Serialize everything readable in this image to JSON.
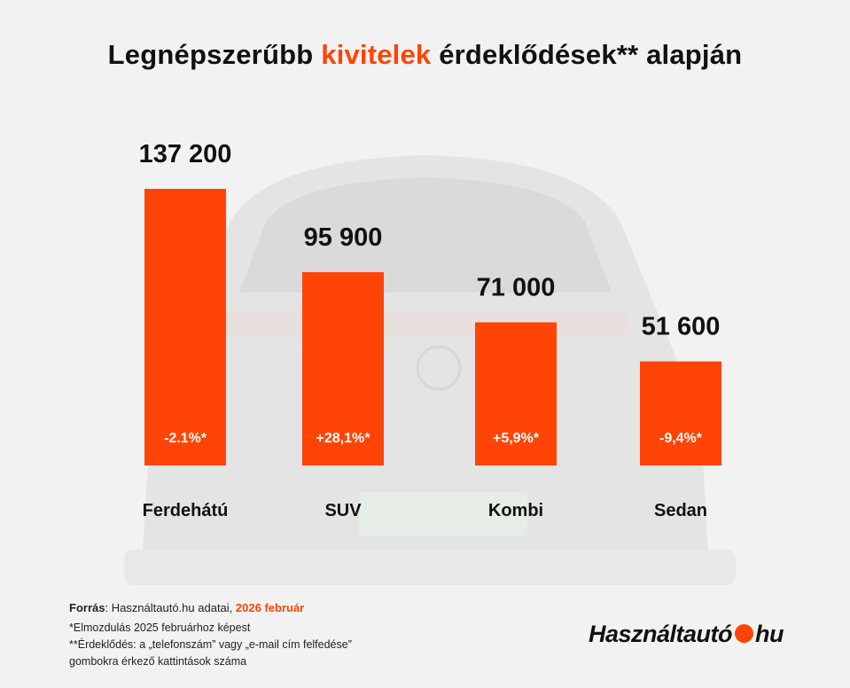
{
  "title": {
    "part1": "Legnépszerűbb",
    "accent": "kivitelek",
    "part2": "érdeklődések** alapján"
  },
  "chart_data": {
    "type": "bar",
    "categories": [
      "Ferdehátú",
      "SUV",
      "Kombi",
      "Sedan"
    ],
    "values": [
      137200,
      95900,
      71000,
      51600
    ],
    "value_labels": [
      "137 200",
      "95 900",
      "71 000",
      "51 600"
    ],
    "changes": [
      "-2.1%*",
      "+28,1%*",
      "+5,9%*",
      "-9,4%*"
    ],
    "ylim": [
      0,
      150000
    ],
    "grid": false,
    "bar_color": "#ff4405"
  },
  "footer": {
    "source_label": "Forrás",
    "source_text": ": Használtautó.hu adatai,",
    "source_date": "2026 február",
    "note1": "*Elmozdulás 2025 februárhoz képest",
    "note2_line1": "**Érdeklődés: a „telefonszám” vagy „e-mail cím felfedése”",
    "note2_line2": "gombokra érkező kattintások száma"
  },
  "logo": {
    "part1": "Használtautó",
    "part2": "hu"
  },
  "colors": {
    "accent": "#ff4405",
    "text": "#111111"
  }
}
